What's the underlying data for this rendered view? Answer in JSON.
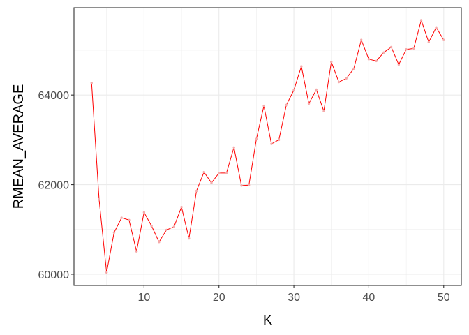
{
  "chart_data": {
    "type": "line",
    "xlabel": "K",
    "ylabel": "RMEAN_AVERAGE",
    "xlim": [
      0.65,
      52.35
    ],
    "ylim": [
      59750,
      65950
    ],
    "x_ticks": [
      10,
      20,
      30,
      40,
      50
    ],
    "x_minor_ticks": [
      5,
      15,
      25,
      35,
      45
    ],
    "y_ticks": [
      60000,
      62000,
      64000
    ],
    "y_tick_labels": [
      "60000",
      "62000",
      "64000"
    ],
    "y_minor_ticks": [
      61000,
      63000,
      65000
    ],
    "grid": true,
    "series": [
      {
        "line_color": "#ff0000",
        "point_color": "#f4aaaa",
        "x": [
          3,
          4,
          5,
          6,
          7,
          8,
          9,
          10,
          11,
          12,
          13,
          14,
          15,
          16,
          17,
          18,
          19,
          20,
          21,
          22,
          23,
          24,
          25,
          26,
          27,
          28,
          29,
          30,
          31,
          32,
          33,
          34,
          35,
          36,
          37,
          38,
          39,
          40,
          41,
          42,
          43,
          44,
          45,
          46,
          47,
          48,
          49,
          50
        ],
        "y": [
          64270,
          61670,
          60040,
          60930,
          61260,
          61210,
          60510,
          61380,
          61080,
          60720,
          60990,
          61060,
          61500,
          60800,
          61860,
          62280,
          62040,
          62260,
          62260,
          62830,
          61980,
          61990,
          63020,
          63760,
          62910,
          63000,
          63780,
          64110,
          64640,
          63810,
          64120,
          63640,
          64740,
          64290,
          64370,
          64590,
          65230,
          64800,
          64760,
          64950,
          65070,
          64680,
          65020,
          65040,
          65670,
          65180,
          65510,
          65230
        ]
      }
    ]
  }
}
